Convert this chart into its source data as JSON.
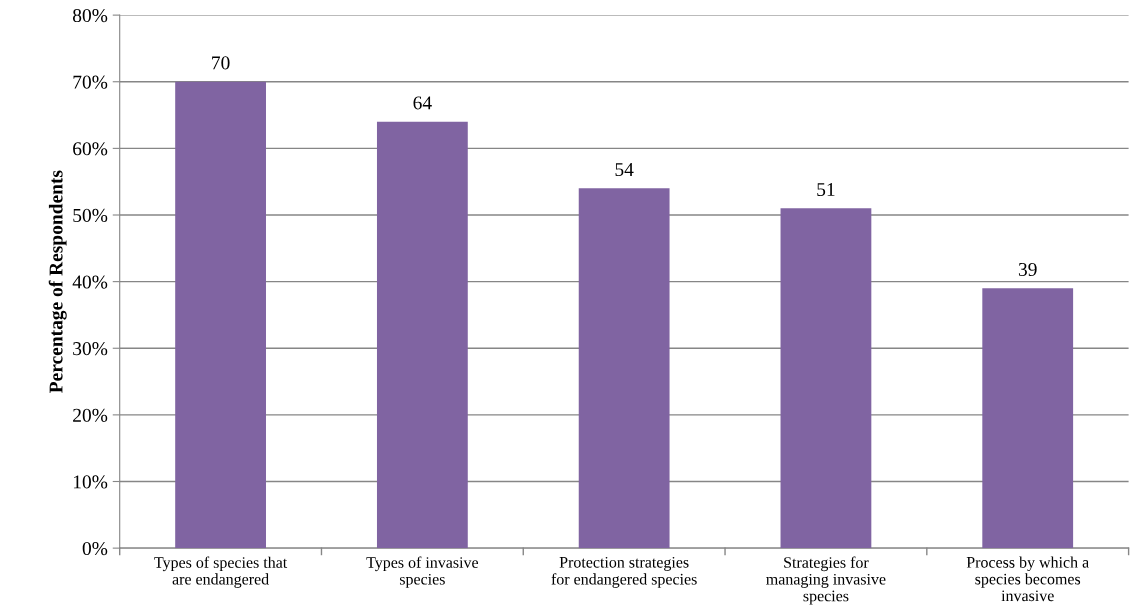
{
  "chart_data": {
    "type": "bar",
    "ylabel": "Percentage of Respondents",
    "categories": [
      "Types of species that are endangered",
      "Types of invasive species",
      "Protection strategies for endangered species",
      "Strategies for managing invasive species",
      "Process by which a species becomes invasive"
    ],
    "values": [
      70,
      64,
      54,
      51,
      39
    ],
    "color": "#8064a2",
    "data_labels": true,
    "ylim": [
      0,
      80
    ],
    "yticks": [
      {
        "value": 0,
        "label": "0%"
      },
      {
        "value": 10,
        "label": "10%"
      },
      {
        "value": 20,
        "label": "20%"
      },
      {
        "value": 30,
        "label": "30%"
      },
      {
        "value": 40,
        "label": "40%"
      },
      {
        "value": 50,
        "label": "50%"
      },
      {
        "value": 60,
        "label": "60%"
      },
      {
        "value": 70,
        "label": "70%"
      },
      {
        "value": 80,
        "label": "80%"
      }
    ],
    "grid": "y",
    "legend": false
  }
}
